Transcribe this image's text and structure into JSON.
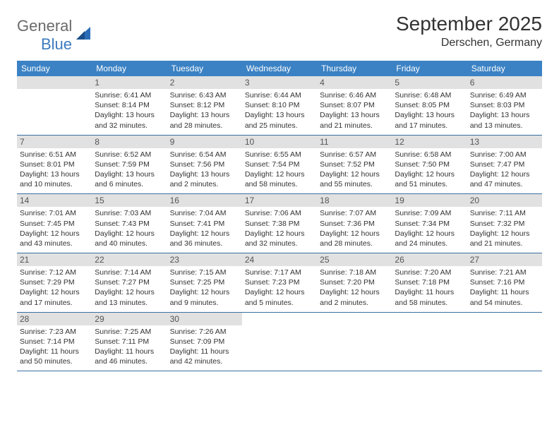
{
  "logo": {
    "text1": "General",
    "text2": "Blue"
  },
  "title": "September 2025",
  "location": "Derschen, Germany",
  "layout": {
    "columns": 7,
    "header_bg": "#3b82c4",
    "header_fg": "#ffffff",
    "band_bg": "#e1e1e1",
    "rule_color": "#3b6fa0",
    "body_font_size": 10.5,
    "daynum_font_size": 12
  },
  "dow": [
    "Sunday",
    "Monday",
    "Tuesday",
    "Wednesday",
    "Thursday",
    "Friday",
    "Saturday"
  ],
  "weeks": [
    [
      {
        "n": "",
        "sr": "",
        "ss": "",
        "dl": ""
      },
      {
        "n": "1",
        "sr": "6:41 AM",
        "ss": "8:14 PM",
        "dl": "13 hours and 32 minutes."
      },
      {
        "n": "2",
        "sr": "6:43 AM",
        "ss": "8:12 PM",
        "dl": "13 hours and 28 minutes."
      },
      {
        "n": "3",
        "sr": "6:44 AM",
        "ss": "8:10 PM",
        "dl": "13 hours and 25 minutes."
      },
      {
        "n": "4",
        "sr": "6:46 AM",
        "ss": "8:07 PM",
        "dl": "13 hours and 21 minutes."
      },
      {
        "n": "5",
        "sr": "6:48 AM",
        "ss": "8:05 PM",
        "dl": "13 hours and 17 minutes."
      },
      {
        "n": "6",
        "sr": "6:49 AM",
        "ss": "8:03 PM",
        "dl": "13 hours and 13 minutes."
      }
    ],
    [
      {
        "n": "7",
        "sr": "6:51 AM",
        "ss": "8:01 PM",
        "dl": "13 hours and 10 minutes."
      },
      {
        "n": "8",
        "sr": "6:52 AM",
        "ss": "7:59 PM",
        "dl": "13 hours and 6 minutes."
      },
      {
        "n": "9",
        "sr": "6:54 AM",
        "ss": "7:56 PM",
        "dl": "13 hours and 2 minutes."
      },
      {
        "n": "10",
        "sr": "6:55 AM",
        "ss": "7:54 PM",
        "dl": "12 hours and 58 minutes."
      },
      {
        "n": "11",
        "sr": "6:57 AM",
        "ss": "7:52 PM",
        "dl": "12 hours and 55 minutes."
      },
      {
        "n": "12",
        "sr": "6:58 AM",
        "ss": "7:50 PM",
        "dl": "12 hours and 51 minutes."
      },
      {
        "n": "13",
        "sr": "7:00 AM",
        "ss": "7:47 PM",
        "dl": "12 hours and 47 minutes."
      }
    ],
    [
      {
        "n": "14",
        "sr": "7:01 AM",
        "ss": "7:45 PM",
        "dl": "12 hours and 43 minutes."
      },
      {
        "n": "15",
        "sr": "7:03 AM",
        "ss": "7:43 PM",
        "dl": "12 hours and 40 minutes."
      },
      {
        "n": "16",
        "sr": "7:04 AM",
        "ss": "7:41 PM",
        "dl": "12 hours and 36 minutes."
      },
      {
        "n": "17",
        "sr": "7:06 AM",
        "ss": "7:38 PM",
        "dl": "12 hours and 32 minutes."
      },
      {
        "n": "18",
        "sr": "7:07 AM",
        "ss": "7:36 PM",
        "dl": "12 hours and 28 minutes."
      },
      {
        "n": "19",
        "sr": "7:09 AM",
        "ss": "7:34 PM",
        "dl": "12 hours and 24 minutes."
      },
      {
        "n": "20",
        "sr": "7:11 AM",
        "ss": "7:32 PM",
        "dl": "12 hours and 21 minutes."
      }
    ],
    [
      {
        "n": "21",
        "sr": "7:12 AM",
        "ss": "7:29 PM",
        "dl": "12 hours and 17 minutes."
      },
      {
        "n": "22",
        "sr": "7:14 AM",
        "ss": "7:27 PM",
        "dl": "12 hours and 13 minutes."
      },
      {
        "n": "23",
        "sr": "7:15 AM",
        "ss": "7:25 PM",
        "dl": "12 hours and 9 minutes."
      },
      {
        "n": "24",
        "sr": "7:17 AM",
        "ss": "7:23 PM",
        "dl": "12 hours and 5 minutes."
      },
      {
        "n": "25",
        "sr": "7:18 AM",
        "ss": "7:20 PM",
        "dl": "12 hours and 2 minutes."
      },
      {
        "n": "26",
        "sr": "7:20 AM",
        "ss": "7:18 PM",
        "dl": "11 hours and 58 minutes."
      },
      {
        "n": "27",
        "sr": "7:21 AM",
        "ss": "7:16 PM",
        "dl": "11 hours and 54 minutes."
      }
    ],
    [
      {
        "n": "28",
        "sr": "7:23 AM",
        "ss": "7:14 PM",
        "dl": "11 hours and 50 minutes."
      },
      {
        "n": "29",
        "sr": "7:25 AM",
        "ss": "7:11 PM",
        "dl": "11 hours and 46 minutes."
      },
      {
        "n": "30",
        "sr": "7:26 AM",
        "ss": "7:09 PM",
        "dl": "11 hours and 42 minutes."
      },
      {
        "n": "",
        "sr": "",
        "ss": "",
        "dl": ""
      },
      {
        "n": "",
        "sr": "",
        "ss": "",
        "dl": ""
      },
      {
        "n": "",
        "sr": "",
        "ss": "",
        "dl": ""
      },
      {
        "n": "",
        "sr": "",
        "ss": "",
        "dl": ""
      }
    ]
  ]
}
